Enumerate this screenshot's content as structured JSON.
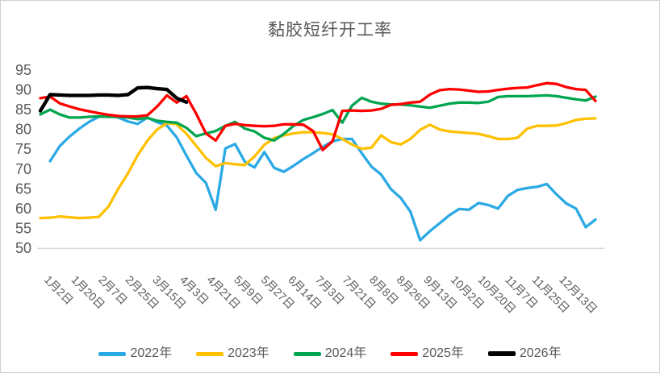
{
  "chart": {
    "title": "黏胶短纤开工率"
  },
  "chart_data": {
    "type": "line",
    "title": "黏胶短纤开工率",
    "xlabel": "",
    "ylabel": "",
    "ylim": [
      50,
      95
    ],
    "y_ticks": [
      50,
      55,
      60,
      65,
      70,
      75,
      80,
      85,
      90,
      95
    ],
    "grid": false,
    "legend_position": "bottom",
    "axis_text_color": "#595959",
    "axis_line_color": "#d9d9d9",
    "n_points": 58,
    "label_step": 3,
    "x_labels": [
      "1月2日",
      "1月20日",
      "2月7日",
      "2月25日",
      "3月15日",
      "4月3日",
      "4月21日",
      "5月9日",
      "5月27日",
      "6月14日",
      "7月3日",
      "7月21日",
      "8月8日",
      "8月26日",
      "9月13日",
      "10月2日",
      "10月20日",
      "11月7日",
      "11月25日",
      "12月13日"
    ],
    "series": [
      {
        "name": "2022年",
        "color": "#2BA9E4",
        "values": [
          null,
          72.0,
          75.8,
          78.2,
          80.2,
          81.9,
          83.2,
          83.5,
          83.0,
          82.0,
          81.4,
          83.0,
          81.8,
          81.0,
          78.0,
          73.4,
          69.0,
          66.5,
          59.7,
          75.2,
          76.3,
          71.8,
          70.4,
          74.3,
          70.3,
          69.3,
          70.8,
          72.5,
          74.0,
          75.6,
          77.0,
          77.6,
          77.6,
          74.0,
          70.6,
          68.6,
          64.9,
          62.7,
          59.2,
          52.0,
          54.3,
          56.3,
          58.3,
          59.9,
          59.7,
          61.4,
          60.9,
          60.0,
          63.2,
          64.7,
          65.2,
          65.5,
          66.2,
          63.6,
          61.3,
          60.0,
          55.3,
          57.2
        ]
      },
      {
        "name": "2023年",
        "color": "#FFC000",
        "values": [
          57.6,
          57.7,
          58.0,
          57.8,
          57.6,
          57.7,
          57.9,
          60.5,
          65.0,
          68.9,
          73.5,
          77.2,
          80.0,
          81.6,
          81.3,
          78.9,
          75.9,
          72.8,
          70.7,
          71.5,
          71.2,
          71.0,
          73.2,
          76.1,
          77.8,
          78.5,
          79.0,
          79.3,
          79.3,
          79.1,
          78.8,
          77.6,
          76.2,
          75.1,
          75.4,
          78.5,
          76.8,
          76.2,
          77.6,
          79.9,
          81.2,
          80.0,
          79.5,
          79.3,
          79.1,
          78.9,
          78.3,
          77.6,
          77.6,
          77.9,
          80.2,
          80.9,
          80.9,
          81.0,
          81.6,
          82.4,
          82.7,
          82.8
        ]
      },
      {
        "name": "2024年",
        "color": "#00A550",
        "values": [
          83.8,
          85.0,
          83.8,
          83.0,
          83.0,
          83.2,
          83.3,
          83.2,
          83.2,
          83.0,
          82.6,
          82.9,
          82.2,
          81.9,
          81.7,
          80.4,
          78.3,
          79.0,
          79.6,
          80.9,
          81.9,
          80.2,
          79.5,
          77.9,
          77.2,
          78.9,
          80.9,
          82.4,
          83.1,
          83.9,
          84.9,
          81.7,
          86.0,
          88.0,
          87.0,
          86.5,
          86.3,
          86.3,
          86.1,
          85.8,
          85.5,
          86.0,
          86.5,
          86.8,
          86.8,
          86.7,
          87.0,
          88.2,
          88.4,
          88.4,
          88.4,
          88.5,
          88.6,
          88.4,
          88.0,
          87.6,
          87.3,
          88.3
        ]
      },
      {
        "name": "2025年",
        "color": "#FF0000",
        "values": [
          87.9,
          88.3,
          86.6,
          85.8,
          85.1,
          84.6,
          84.1,
          83.7,
          83.4,
          83.3,
          83.3,
          83.6,
          85.8,
          88.6,
          86.8,
          88.4,
          84.0,
          79.0,
          77.2,
          80.9,
          81.4,
          81.1,
          80.9,
          80.8,
          80.9,
          81.3,
          81.3,
          81.2,
          79.6,
          74.8,
          77.0,
          84.7,
          84.8,
          84.7,
          84.8,
          85.2,
          86.2,
          86.4,
          86.8,
          87.0,
          88.8,
          89.9,
          90.2,
          90.1,
          89.8,
          89.5,
          89.6,
          90.0,
          90.3,
          90.5,
          90.6,
          91.2,
          91.7,
          91.5,
          90.7,
          90.2,
          90.0,
          87.2
        ]
      },
      {
        "name": "2026年",
        "color": "#000000",
        "values": [
          84.7,
          88.8,
          88.7,
          88.6,
          88.6,
          88.6,
          88.7,
          88.7,
          88.6,
          88.8,
          90.5,
          90.6,
          90.3,
          90.1,
          87.9,
          86.9,
          null,
          null,
          null,
          null,
          null,
          null,
          null,
          null,
          null,
          null,
          null,
          null,
          null,
          null,
          null,
          null,
          null,
          null,
          null,
          null,
          null,
          null,
          null,
          null,
          null,
          null,
          null,
          null,
          null,
          null,
          null,
          null,
          null,
          null,
          null,
          null,
          null,
          null,
          null,
          null,
          null,
          null
        ]
      }
    ]
  }
}
